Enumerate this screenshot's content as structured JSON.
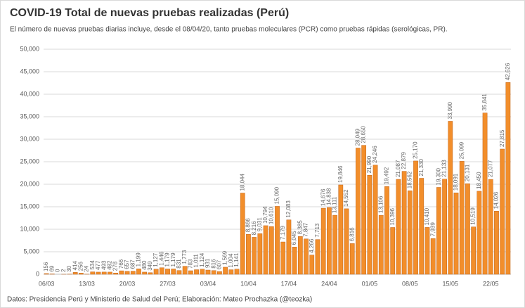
{
  "chart_data": {
    "type": "bar",
    "title": "COVID-19 Total de nuevas pruebas realizadas (Perú)",
    "subtitle": "El número de nuevas pruebas diarias incluye, desde el 08/04/20, tanto pruebas moleculares (PCR) como pruebas rápidas (serológicas, PR).",
    "source": "Datos: Presidencia Perú y Ministerio de Salud del Perú; Elaboración: Mateo Prochazka (@teozka)",
    "color": "#f28e2b",
    "grid": true,
    "categories": [
      "06/03",
      null,
      null,
      null,
      null,
      null,
      null,
      "13/03",
      null,
      null,
      null,
      null,
      null,
      null,
      "20/03",
      null,
      null,
      null,
      null,
      null,
      null,
      "27/03",
      null,
      null,
      null,
      null,
      null,
      null,
      "03/04",
      null,
      null,
      null,
      null,
      null,
      null,
      "10/04",
      null,
      null,
      null,
      null,
      null,
      null,
      "17/04",
      null,
      null,
      null,
      null,
      null,
      null,
      "24/04",
      null,
      null,
      null,
      null,
      null,
      null,
      "01/05",
      null,
      null,
      null,
      null,
      null,
      null,
      "08/05",
      null,
      null,
      null,
      null,
      null,
      null,
      "15/05",
      null,
      null,
      null,
      null,
      null,
      null,
      "22/05",
      null,
      null,
      null
    ],
    "values": [
      156,
      69,
      0,
      2,
      30,
      414,
      256,
      24,
      534,
      477,
      493,
      482,
      278,
      766,
      657,
      687,
      1199,
      480,
      349,
      1127,
      1446,
      1179,
      1179,
      831,
      1773,
      783,
      1011,
      1124,
      931,
      816,
      607,
      1569,
      1004,
      1141,
      18044,
      8866,
      8216,
      9031,
      10794,
      10610,
      15090,
      7179,
      12083,
      6045,
      8385,
      7847,
      4266,
      7713,
      14676,
      14838,
      13111,
      19846,
      14552,
      6816,
      28049,
      28650,
      21990,
      24246,
      13106,
      19492,
      10396,
      21087,
      22879,
      18562,
      25170,
      21330,
      10410,
      7939,
      19300,
      21133,
      33990,
      18091,
      25099,
      20131,
      10519,
      18450,
      35841,
      21077,
      14026,
      27815,
      42626
    ],
    "value_labels": [
      "156",
      "69",
      "0",
      "2",
      "30",
      "414",
      "256",
      "24",
      "534",
      "477",
      "493",
      "482",
      "278",
      "766",
      "657",
      "687",
      "1,199",
      "480",
      "349",
      "1,127",
      "1,446",
      "1,179",
      "1,179",
      "831",
      "1,773",
      "783",
      "1,011",
      "1,124",
      "931",
      "816",
      "607",
      "1,569",
      "1,004",
      "1,141",
      "18,044",
      "8,866",
      "8,216",
      "9,031",
      "10,794",
      "10,610",
      "15,090",
      "7,179",
      "12,083",
      "6,045",
      "8,385",
      "7,847",
      "4,266",
      "7,713",
      "14,676",
      "14,838",
      "13,111",
      "19,846",
      "14,552",
      "6,816",
      "28,049",
      "28,650",
      "21,990",
      "24,246",
      "13,106",
      "19,492",
      "10,396",
      "21,087",
      "22,879",
      "18,562",
      "25,170",
      "21,330",
      "10,410",
      "7,939",
      "19,300",
      "21,133",
      "33,990",
      "18,091",
      "25,099",
      "20,131",
      "10,519",
      "18,450",
      "35,841",
      "21,077",
      "14,026",
      "27,815",
      "42,626"
    ],
    "ylim": [
      0,
      50000
    ],
    "yticks": [
      0,
      {
        "value": 5000,
        "label": "5,000"
      },
      {
        "value": 10000,
        "label": "10,000"
      },
      {
        "value": 15000,
        "label": "15,000"
      },
      {
        "value": 20000,
        "label": "20,000"
      },
      {
        "value": 25000,
        "label": "25,000"
      },
      {
        "value": 30000,
        "label": "30,000"
      },
      {
        "value": 35000,
        "label": "35,000"
      },
      {
        "value": 40000,
        "label": "40,000"
      },
      {
        "value": 45000,
        "label": "45,000"
      },
      {
        "value": 50000,
        "label": "50,000"
      }
    ]
  }
}
